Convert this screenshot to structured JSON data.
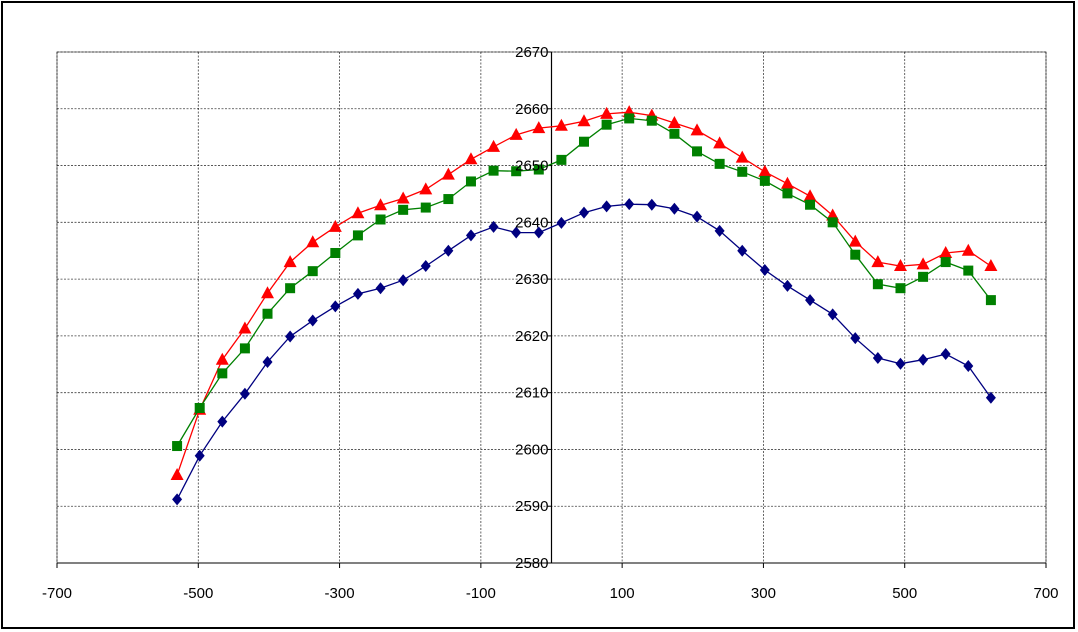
{
  "chart_data": {
    "type": "line",
    "title": "",
    "xlabel": "",
    "ylabel": "",
    "xlim": [
      -700,
      700
    ],
    "ylim": [
      2580,
      2670
    ],
    "xticks": [
      -700,
      -500,
      -300,
      -100,
      100,
      300,
      500,
      700
    ],
    "yticks": [
      2580,
      2590,
      2600,
      2610,
      2620,
      2630,
      2640,
      2650,
      2660,
      2670
    ],
    "grid": true,
    "legend": "none",
    "x": [
      -530,
      -498,
      -466,
      -434,
      -402,
      -370,
      -338,
      -306,
      -274,
      -242,
      -210,
      -178,
      -146,
      -114,
      -82,
      -50,
      -18,
      14,
      46,
      78,
      110,
      142,
      174,
      206,
      238,
      270,
      302,
      334,
      366,
      398,
      430,
      462,
      494,
      526,
      558,
      590,
      622
    ],
    "series": [
      {
        "marker": "triangle",
        "color": "#ff0000",
        "values": [
          2595.5,
          2607,
          2615.8,
          2621.3,
          2627.5,
          2633,
          2636.5,
          2639.2,
          2641.6,
          2643,
          2644.2,
          2645.8,
          2648.4,
          2651.1,
          2653.3,
          2655.4,
          2656.6,
          2657,
          2657.8,
          2659.1,
          2659.4,
          2658.8,
          2657.5,
          2656.2,
          2653.9,
          2651.4,
          2648.9,
          2646.8,
          2644.6,
          2641.2,
          2636.6,
          2633,
          2632.3,
          2632.6,
          2634.6,
          2635,
          2632.3
        ]
      },
      {
        "marker": "square",
        "color": "#008000",
        "values": [
          2600.6,
          2607.3,
          2613.4,
          2617.8,
          2623.9,
          2628.4,
          2631.4,
          2634.6,
          2637.7,
          2640.5,
          2642.2,
          2642.6,
          2644.1,
          2647.2,
          2649.1,
          2649,
          2649.3,
          2651,
          2654.2,
          2657.2,
          2658.3,
          2657.9,
          2655.6,
          2652.5,
          2650.3,
          2648.9,
          2647.3,
          2645.1,
          2643.1,
          2640,
          2634.3,
          2629.1,
          2628.4,
          2630.4,
          2633,
          2631.5,
          2626.3
        ]
      },
      {
        "marker": "diamond",
        "color": "#000080",
        "values": [
          2591.2,
          2598.9,
          2604.9,
          2609.8,
          2615.4,
          2619.9,
          2622.7,
          2625.2,
          2627.4,
          2628.4,
          2629.8,
          2632.3,
          2635,
          2637.7,
          2639.2,
          2638.2,
          2638.2,
          2639.9,
          2641.7,
          2642.8,
          2643.2,
          2643.1,
          2642.4,
          2641,
          2638.5,
          2635,
          2631.6,
          2628.8,
          2626.3,
          2623.8,
          2619.6,
          2616.1,
          2615.1,
          2615.8,
          2616.8,
          2614.7,
          2609.1
        ]
      }
    ]
  }
}
